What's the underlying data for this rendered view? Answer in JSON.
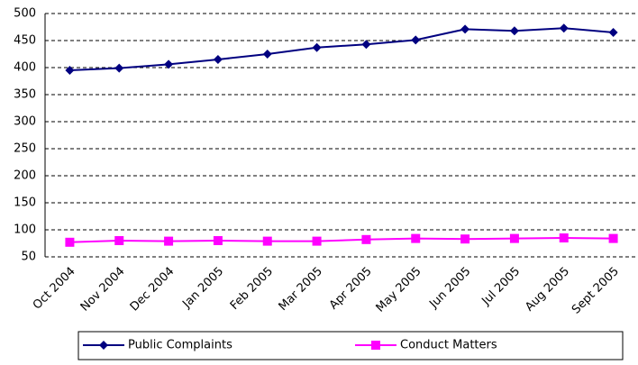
{
  "chart_data": {
    "type": "line",
    "categories": [
      "Oct 2004",
      "Nov 2004",
      "Dec 2004",
      "Jan 2005",
      "Feb 2005",
      "Mar 2005",
      "Apr 2005",
      "May 2005",
      "Jun 2005",
      "Jul 2005",
      "Aug 2005",
      "Sept 2005"
    ],
    "series": [
      {
        "name": "Public Complaints",
        "color": "#000080",
        "marker": "diamond",
        "values": [
          395,
          399,
          406,
          415,
          425,
          437,
          443,
          451,
          471,
          468,
          473,
          465
        ]
      },
      {
        "name": "Conduct Matters",
        "color": "#ff00ff",
        "marker": "square",
        "values": [
          77,
          80,
          79,
          80,
          79,
          79,
          82,
          84,
          83,
          84,
          85,
          84
        ]
      }
    ],
    "ylim": [
      50,
      500
    ],
    "yticks": [
      50,
      100,
      150,
      200,
      250,
      300,
      350,
      400,
      450,
      500
    ],
    "grid": true,
    "legend": "bottom"
  }
}
